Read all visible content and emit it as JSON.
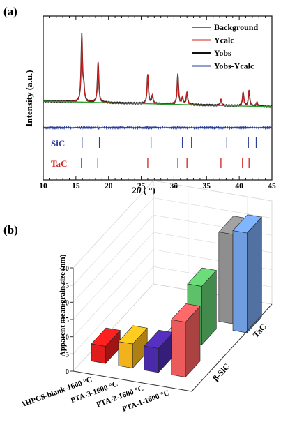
{
  "chart_data": [
    {
      "panel_label": "(a)",
      "type": "line",
      "xlabel_parts": [
        "2",
        "θ",
        " ( °)"
      ],
      "ylabel": "Intensity (a.u.)",
      "xlim": [
        10,
        45
      ],
      "x_ticks": [
        "10",
        "15",
        "20",
        "25",
        "30",
        "35",
        "40",
        "45"
      ],
      "legend_position": "top-right",
      "series": [
        {
          "name": "Background",
          "color": "#2e9e2e"
        },
        {
          "name": "Ycalc",
          "color": "#d42020"
        },
        {
          "name": "Yobs",
          "color": "#111111"
        },
        {
          "name": "Yobs-Ycalc",
          "color": "#2b3f9a"
        }
      ],
      "peaks": [
        {
          "x": 15.9,
          "h": 95
        },
        {
          "x": 16.2,
          "h": 20
        },
        {
          "x": 18.4,
          "h": 58
        },
        {
          "x": 26.0,
          "h": 42
        },
        {
          "x": 26.7,
          "h": 12
        },
        {
          "x": 30.6,
          "h": 44
        },
        {
          "x": 31.3,
          "h": 10
        },
        {
          "x": 32.0,
          "h": 18
        },
        {
          "x": 37.2,
          "h": 9
        },
        {
          "x": 40.6,
          "h": 20
        },
        {
          "x": 41.5,
          "h": 23
        },
        {
          "x": 42.7,
          "h": 6
        }
      ],
      "reflections": [
        {
          "name": "SiC",
          "color": "#2b3f9a",
          "x": [
            15.95,
            18.6,
            26.5,
            31.3,
            32.7,
            38.1,
            41.4,
            42.6
          ]
        },
        {
          "name": "TaC",
          "color": "#d42020",
          "x": [
            15.85,
            18.35,
            26.0,
            30.6,
            32.0,
            37.2,
            40.5,
            41.5
          ]
        }
      ]
    },
    {
      "panel_label": "(b)",
      "type": "bar3d",
      "zlabel": "Apparent mean grain size (nm)",
      "zlim": [
        0,
        30
      ],
      "z_ticks": [
        "0",
        "5",
        "10",
        "15",
        "20",
        "25",
        "30"
      ],
      "x_categories": [
        "AHPCS-blank-1600 °C",
        "PTA-3-1600 °C",
        "PTA-2-1600 °C",
        "PTA-1-1600 °C"
      ],
      "y_categories": [
        "β-SiC",
        "TaC"
      ],
      "bars": [
        {
          "category": "AHPCS-blank-1600 °C",
          "phase": "β-SiC",
          "value": 5,
          "color": "#e01c1c"
        },
        {
          "category": "PTA-3-1600 °C",
          "phase": "β-SiC",
          "value": 7,
          "color": "#f2b21b"
        },
        {
          "category": "PTA-2-1600 °C",
          "phase": "β-SiC",
          "value": 7,
          "color": "#4a2aa8"
        },
        {
          "category": "PTA-1-1600 °C",
          "phase": "β-SiC",
          "value": 16,
          "color": "#ec5b5b"
        },
        {
          "category": "PTA-3-1600 °C",
          "phase": "TaC",
          "value": 0.5,
          "color": "#c0c0c0"
        },
        {
          "category": "PTA-2-1600 °C",
          "phase": "TaC",
          "value": 17,
          "color": "#5dc16a"
        },
        {
          "category": "PTA-1-1600 °C",
          "phase": "TaC",
          "value": 26,
          "color": "#8e8e8e"
        },
        {
          "category": "PTA-1-1600 °C",
          "phase": "TaC",
          "value": 29,
          "color": "#6f9de0"
        }
      ]
    }
  ]
}
